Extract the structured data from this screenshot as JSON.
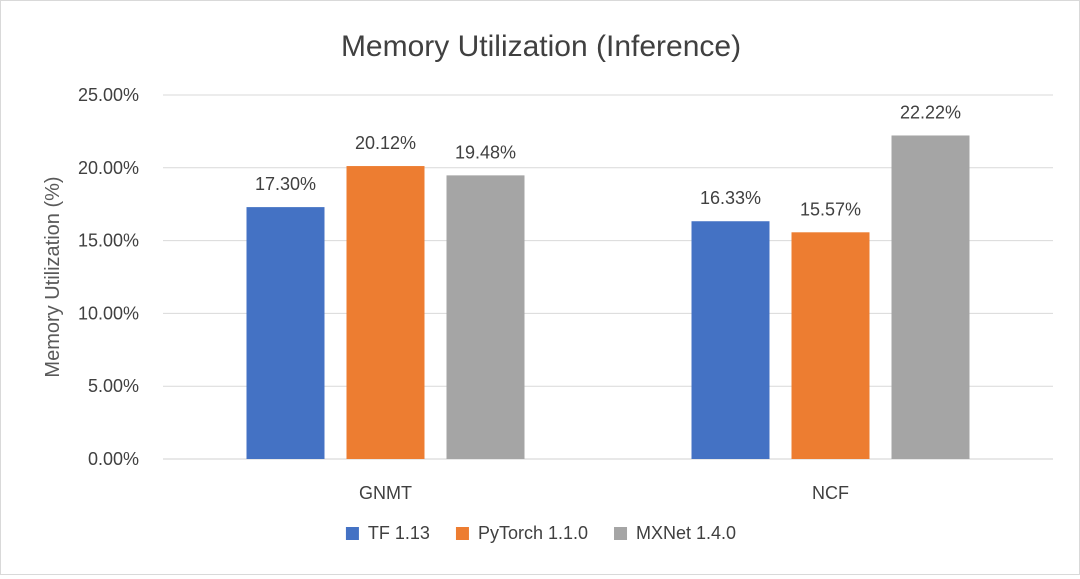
{
  "chart_data": {
    "type": "bar",
    "title": "Memory Utilization (Inference)",
    "xlabel": "",
    "ylabel": "Memory Utilization (%)",
    "ylim": [
      0,
      25
    ],
    "y_tick_step": 5,
    "y_tick_labels": [
      "0.00%",
      "5.00%",
      "10.00%",
      "15.00%",
      "20.00%",
      "25.00%"
    ],
    "grid": true,
    "legend_position": "bottom",
    "categories": [
      "GNMT",
      "NCF"
    ],
    "series": [
      {
        "name": "TF 1.13",
        "color": "#4472C4",
        "values": [
          17.3,
          16.33
        ],
        "labels": [
          "17.30%",
          "16.33%"
        ]
      },
      {
        "name": "PyTorch 1.1.0",
        "color": "#ED7D31",
        "values": [
          20.12,
          15.57
        ],
        "labels": [
          "20.12%",
          "15.57%"
        ]
      },
      {
        "name": "MXNet 1.4.0",
        "color": "#A5A5A5",
        "values": [
          19.48,
          22.22
        ],
        "labels": [
          "19.48%",
          "22.22%"
        ]
      }
    ]
  }
}
